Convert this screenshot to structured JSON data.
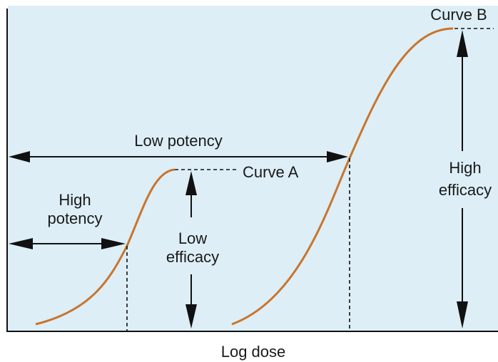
{
  "labels": {
    "curve_a": "Curve A",
    "curve_b": "Curve B",
    "low_potency": "Low potency",
    "high_potency": [
      "High",
      "potency"
    ],
    "low_efficacy": [
      "Low",
      "efficacy"
    ],
    "high_efficacy": [
      "High",
      "efficacy"
    ],
    "x_axis": "Log dose"
  }
}
